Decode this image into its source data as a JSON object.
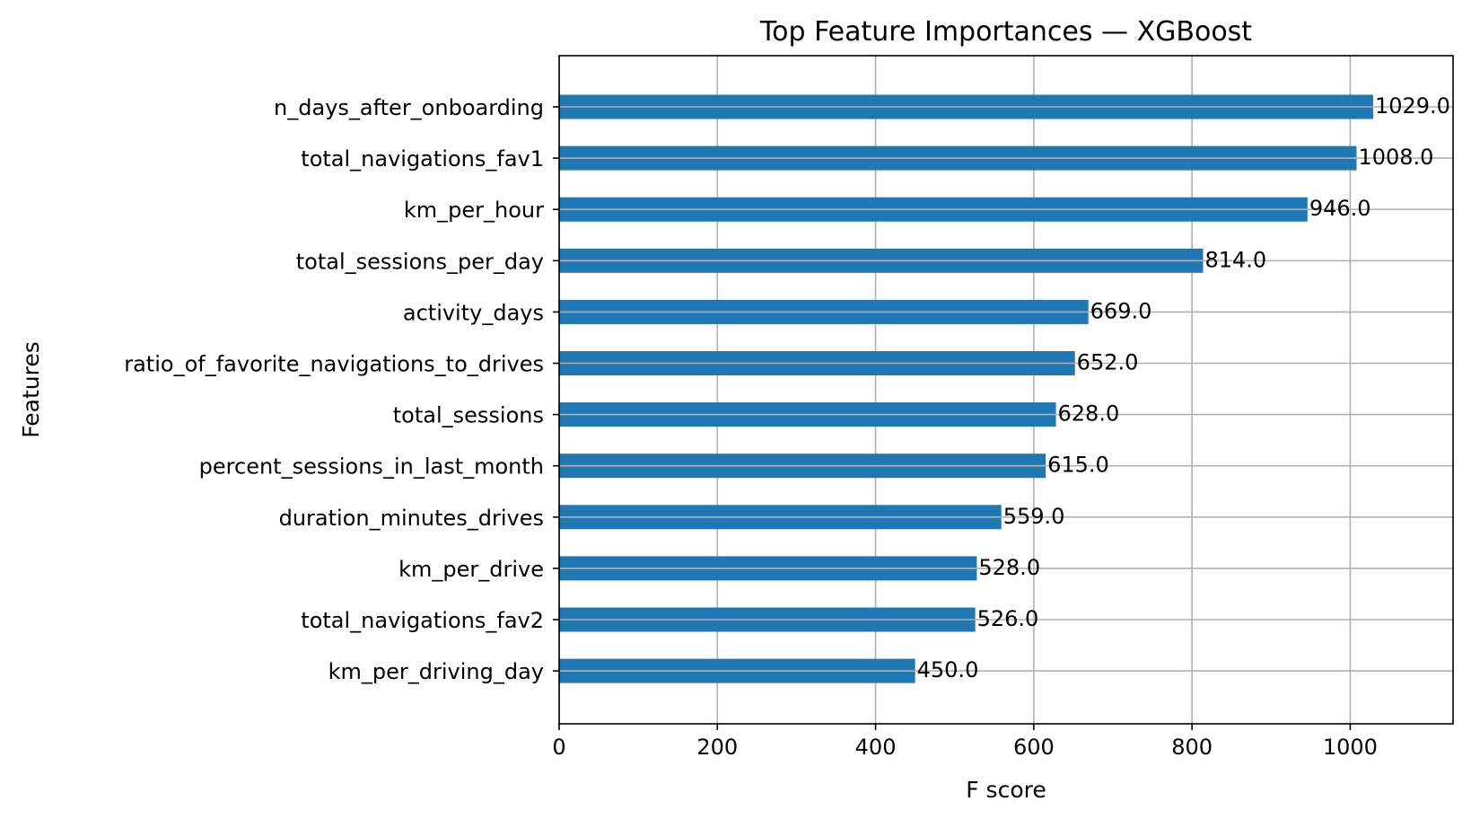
{
  "chart_data": {
    "type": "bar",
    "orientation": "horizontal",
    "title": "Top Feature Importances — XGBoost",
    "xlabel": "F score",
    "ylabel": "Features",
    "xlim": [
      0,
      1130
    ],
    "x_ticks": [
      0,
      200,
      400,
      600,
      800,
      1000
    ],
    "grid": true,
    "bar_color": "#1f77b4",
    "categories": [
      "n_days_after_onboarding",
      "total_navigations_fav1",
      "km_per_hour",
      "total_sessions_per_day",
      "activity_days",
      "ratio_of_favorite_navigations_to_drives",
      "total_sessions",
      "percent_sessions_in_last_month",
      "duration_minutes_drives",
      "km_per_drive",
      "total_navigations_fav2",
      "km_per_driving_day"
    ],
    "values": [
      1029,
      1008,
      946,
      814,
      669,
      652,
      628,
      615,
      559,
      528,
      526,
      450
    ],
    "data_labels": [
      "1029.0",
      "1008.0",
      "946.0",
      "814.0",
      "669.0",
      "652.0",
      "628.0",
      "615.0",
      "559.0",
      "528.0",
      "526.0",
      "450.0"
    ]
  }
}
